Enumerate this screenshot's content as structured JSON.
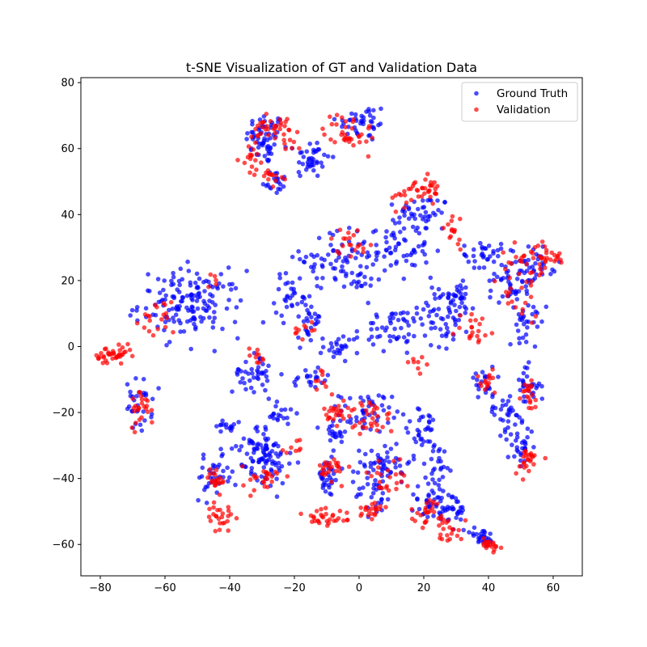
{
  "chart_data": {
    "type": "scatter",
    "title": "t-SNE Visualization of GT and Validation Data",
    "xlabel": "",
    "ylabel": "",
    "xlim": [
      -86,
      69
    ],
    "ylim": [
      -69.5,
      81.5
    ],
    "xticks": [
      -80,
      -60,
      -40,
      -20,
      0,
      20,
      40,
      60
    ],
    "yticks": [
      -60,
      -40,
      -20,
      0,
      20,
      40,
      60,
      80
    ],
    "xtick_labels": [
      "−80",
      "−60",
      "−40",
      "−20",
      "0",
      "20",
      "40",
      "60"
    ],
    "ytick_labels": [
      "−60",
      "−40",
      "−20",
      "0",
      "20",
      "40",
      "60",
      "80"
    ],
    "grid": false,
    "legend_position": "top-right",
    "series": [
      {
        "name": "Ground Truth",
        "color": "#0000ff",
        "clusters": [
          [
            -29,
            63,
            3.0,
            4.0,
            60
          ],
          [
            -26,
            50,
            2.0,
            2.0,
            20
          ],
          [
            -15,
            57,
            3.0,
            3.0,
            40
          ],
          [
            1,
            68,
            4.0,
            3.0,
            40
          ],
          [
            20,
            40,
            4.0,
            3.0,
            40
          ],
          [
            10,
            30,
            6.0,
            5.0,
            70
          ],
          [
            -8,
            27,
            5.0,
            4.0,
            50
          ],
          [
            -20,
            15,
            3.0,
            4.0,
            40
          ],
          [
            -15,
            5,
            2.0,
            3.0,
            20
          ],
          [
            -52,
            13,
            8.0,
            5.0,
            150
          ],
          [
            -68,
            -18,
            2.0,
            4.0,
            30
          ],
          [
            -33,
            -8,
            3.0,
            3.0,
            40
          ],
          [
            -5,
            0,
            3.0,
            2.0,
            25
          ],
          [
            2,
            -20,
            4.0,
            3.0,
            50
          ],
          [
            -8,
            -28,
            2.0,
            3.0,
            20
          ],
          [
            -10,
            -40,
            2.0,
            3.0,
            30
          ],
          [
            -30,
            -30,
            3.0,
            3.0,
            40
          ],
          [
            -45,
            -40,
            3.0,
            3.0,
            35
          ],
          [
            -30,
            -35,
            5.0,
            4.0,
            60
          ],
          [
            8,
            -35,
            4.0,
            3.0,
            50
          ],
          [
            5,
            -45,
            3.0,
            3.0,
            30
          ],
          [
            22,
            -45,
            3.0,
            3.0,
            30
          ],
          [
            28,
            -50,
            3.0,
            3.0,
            40
          ],
          [
            38,
            -58,
            2.0,
            1.5,
            25
          ],
          [
            20,
            -25,
            3.0,
            3.0,
            30
          ],
          [
            25,
            -35,
            2.0,
            3.0,
            20
          ],
          [
            10,
            5,
            4.0,
            3.0,
            40
          ],
          [
            25,
            10,
            5.0,
            5.0,
            60
          ],
          [
            30,
            15,
            3.0,
            3.0,
            30
          ],
          [
            38,
            28,
            3.0,
            2.0,
            30
          ],
          [
            48,
            20,
            4.0,
            4.0,
            50
          ],
          [
            52,
            8,
            3.0,
            3.0,
            30
          ],
          [
            52,
            -12,
            2.0,
            3.0,
            30
          ],
          [
            50,
            -30,
            2.0,
            3.0,
            30
          ],
          [
            45,
            -20,
            3.0,
            3.0,
            30
          ],
          [
            -15,
            -10,
            3.0,
            2.0,
            20
          ],
          [
            -40,
            -24,
            2.0,
            1.0,
            15
          ],
          [
            38,
            -10,
            2.0,
            3.0,
            20
          ],
          [
            0,
            20,
            3.0,
            3.0,
            20
          ],
          [
            55,
            25,
            3.0,
            2.0,
            30
          ],
          [
            -25,
            -20,
            2.0,
            3.0,
            20
          ]
        ]
      },
      {
        "name": "Validation",
        "color": "#ff0000",
        "clusters": [
          [
            -76,
            -3,
            3.0,
            1.5,
            40
          ],
          [
            -67,
            -18,
            2.0,
            3.0,
            25
          ],
          [
            -63,
            8,
            3.0,
            3.0,
            20
          ],
          [
            -44,
            -40,
            1.5,
            2.0,
            20
          ],
          [
            -43,
            -52,
            2.0,
            2.0,
            25
          ],
          [
            -28,
            67,
            3.0,
            2.0,
            30
          ],
          [
            -33,
            57,
            1.5,
            2.0,
            15
          ],
          [
            -28,
            52,
            2.0,
            1.5,
            15
          ],
          [
            -3,
            65,
            4.0,
            3.0,
            35
          ],
          [
            -22,
            63,
            2.0,
            2.0,
            10
          ],
          [
            21,
            48,
            2.0,
            1.5,
            25
          ],
          [
            -3,
            32,
            3.0,
            2.0,
            20
          ],
          [
            -10,
            -52,
            4.0,
            2.0,
            30
          ],
          [
            3,
            -50,
            2.0,
            2.0,
            20
          ],
          [
            -8,
            -37,
            2.0,
            2.0,
            25
          ],
          [
            -30,
            -40,
            3.0,
            2.0,
            25
          ],
          [
            -5,
            -20,
            3.0,
            2.0,
            30
          ],
          [
            5,
            -22,
            3.0,
            3.0,
            25
          ],
          [
            8,
            -40,
            3.0,
            3.0,
            25
          ],
          [
            22,
            -50,
            3.0,
            2.0,
            25
          ],
          [
            28,
            -55,
            2.0,
            2.0,
            20
          ],
          [
            40,
            -60,
            2.0,
            1.5,
            20
          ],
          [
            52,
            -35,
            2.0,
            2.0,
            25
          ],
          [
            52,
            -15,
            2.0,
            3.0,
            20
          ],
          [
            58,
            27,
            3.0,
            2.0,
            30
          ],
          [
            50,
            25,
            3.0,
            3.0,
            20
          ],
          [
            50,
            15,
            3.0,
            3.0,
            15
          ],
          [
            36,
            5,
            3.0,
            3.0,
            20
          ],
          [
            40,
            -10,
            2.0,
            2.0,
            15
          ],
          [
            -32,
            -3,
            2.0,
            1.5,
            10
          ],
          [
            -17,
            5,
            1.5,
            2.0,
            10
          ],
          [
            15,
            45,
            3.0,
            2.0,
            15
          ],
          [
            28,
            35,
            3.0,
            3.0,
            15
          ],
          [
            -45,
            20,
            1.5,
            2.0,
            5
          ],
          [
            -10,
            -10,
            2.0,
            2.0,
            8
          ],
          [
            18,
            -5,
            2.0,
            2.0,
            8
          ],
          [
            -20,
            -30,
            2.0,
            2.0,
            8
          ]
        ]
      }
    ]
  }
}
